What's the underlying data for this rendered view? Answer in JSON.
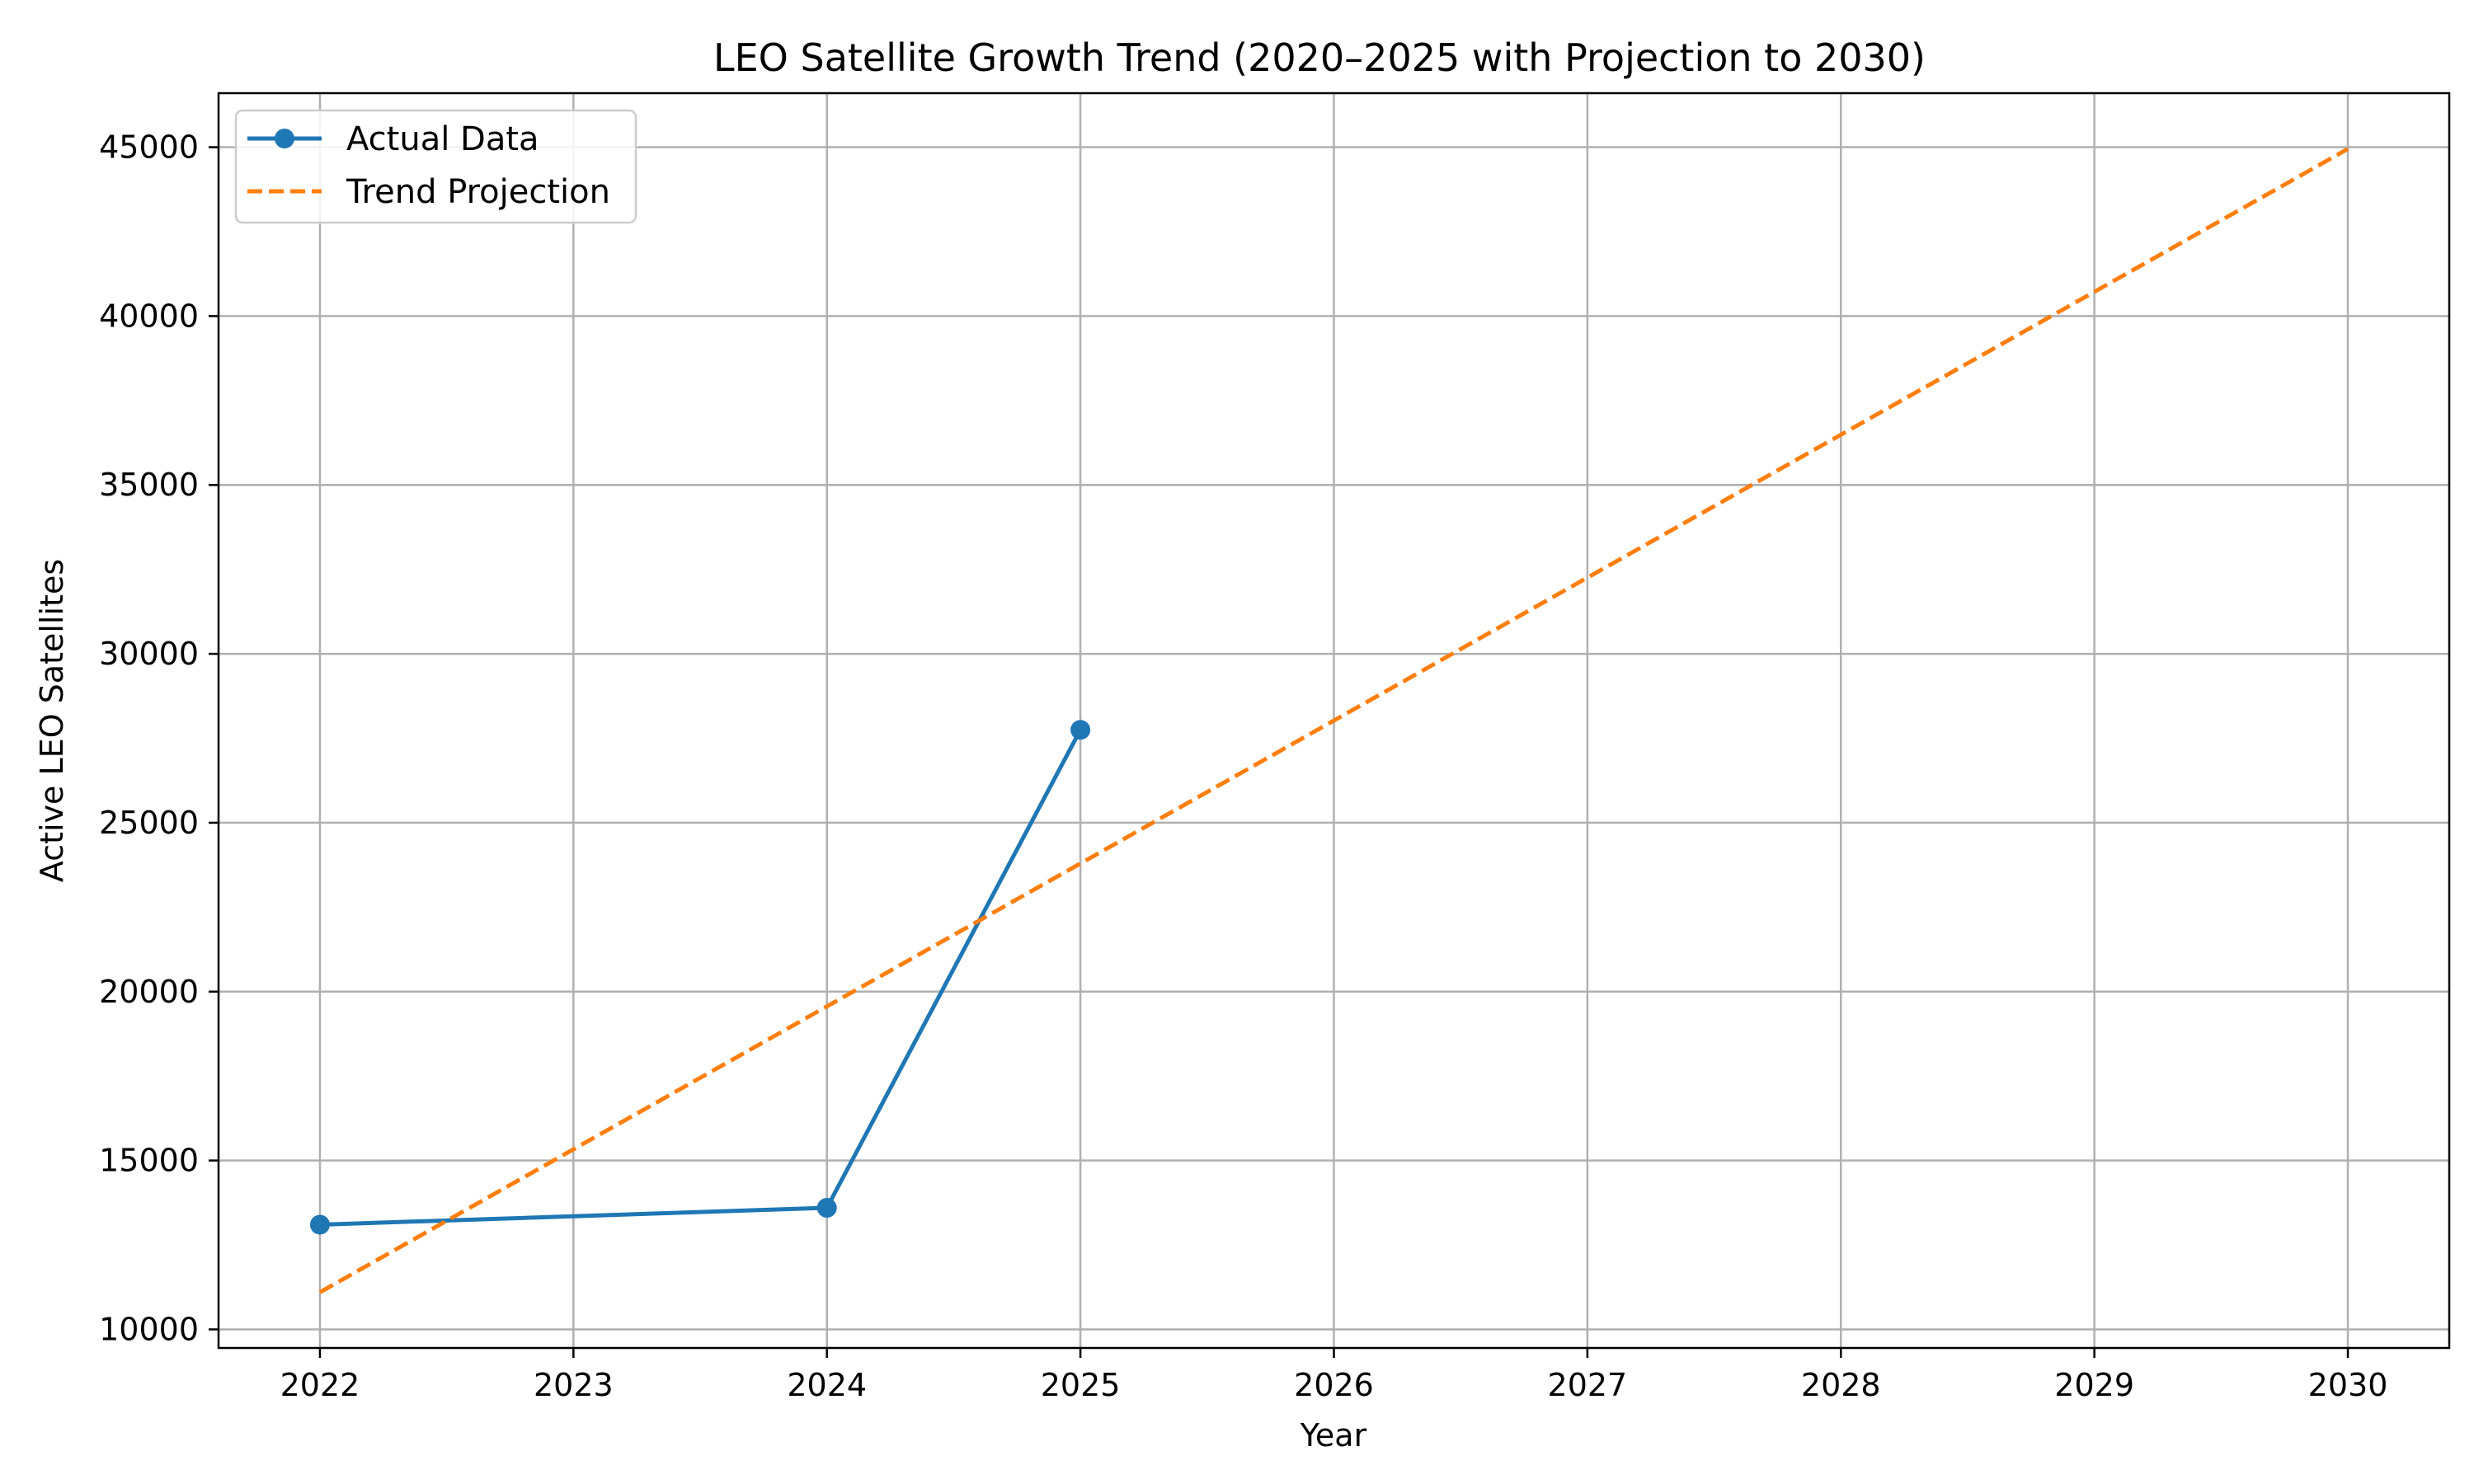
{
  "chart_data": {
    "type": "line",
    "title": "LEO Satellite Growth Trend (2020–2025 with Projection to 2030)",
    "xlabel": "Year",
    "ylabel": "Active LEO Satellites",
    "xlim": [
      2021.6,
      2030.4
    ],
    "ylim": [
      9450,
      46600
    ],
    "x_ticks": [
      "2022",
      "2023",
      "2024",
      "2025",
      "2026",
      "2027",
      "2028",
      "2029",
      "2030"
    ],
    "y_ticks": [
      "10000",
      "15000",
      "20000",
      "25000",
      "30000",
      "35000",
      "40000",
      "45000"
    ],
    "grid": true,
    "legend_position": "upper left",
    "series": [
      {
        "name": "Actual Data",
        "style": "solid",
        "marker": "circle",
        "color": "#1f77b4",
        "x": [
          2022,
          2024,
          2025
        ],
        "y": [
          13100,
          13600,
          27750
        ]
      },
      {
        "name": "Trend Projection",
        "style": "dashed",
        "marker": "none",
        "color": "#ff7f0e",
        "x": [
          2022,
          2030
        ],
        "y": [
          11100,
          44950
        ]
      }
    ]
  }
}
